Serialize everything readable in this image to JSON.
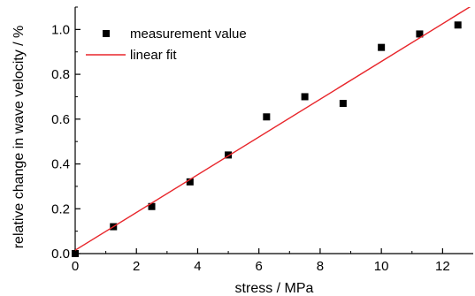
{
  "chart_data": {
    "type": "scatter",
    "title": "",
    "xlabel": "stress / MPa",
    "ylabel": "relative change in wave velocity / %",
    "xlim": [
      0,
      13
    ],
    "ylim": [
      0,
      1.1
    ],
    "x_ticks": [
      0,
      2,
      4,
      6,
      8,
      10,
      12
    ],
    "x_tick_labels": [
      "0",
      "2",
      "4",
      "6",
      "8",
      "10",
      "12"
    ],
    "y_ticks": [
      0.0,
      0.2,
      0.4,
      0.6,
      0.8,
      1.0
    ],
    "y_tick_labels": [
      "0.0",
      "0.2",
      "0.4",
      "0.6",
      "0.8",
      "1.0"
    ],
    "grid": false,
    "legend_position": "top-left",
    "series": [
      {
        "name": "measurement value",
        "kind": "scatter",
        "marker": "square",
        "color": "#000000",
        "x": [
          0,
          1.25,
          2.5,
          3.75,
          5.0,
          6.25,
          7.5,
          8.75,
          10.0,
          11.25,
          12.5
        ],
        "y": [
          0.0,
          0.12,
          0.21,
          0.32,
          0.44,
          0.61,
          0.7,
          0.67,
          0.92,
          0.98,
          1.02
        ]
      },
      {
        "name": "linear fit",
        "kind": "line",
        "color": "#e8262b",
        "x": [
          0,
          13
        ],
        "y": [
          0.015,
          1.11
        ]
      }
    ]
  }
}
